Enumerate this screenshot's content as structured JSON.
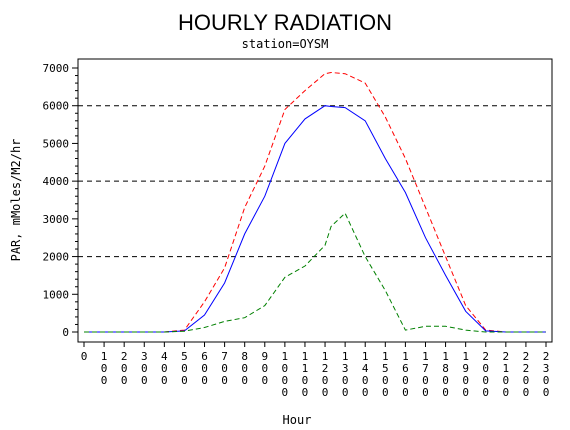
{
  "chart_data": {
    "type": "line",
    "title": "HOURLY RADIATION",
    "subtitle": "station=OYSM",
    "xlabel": "Hour",
    "ylabel": "PAR, mMoles/M2/hr",
    "xlim": [
      0,
      2300
    ],
    "ylim": [
      0,
      7000
    ],
    "x_ticks": [
      "0",
      "100",
      "200",
      "300",
      "400",
      "500",
      "600",
      "700",
      "800",
      "900",
      "1000",
      "1100",
      "1200",
      "1300",
      "1400",
      "1500",
      "1600",
      "1700",
      "1800",
      "1900",
      "2000",
      "2100",
      "2200",
      "2300"
    ],
    "y_ticks": [
      0,
      1000,
      2000,
      3000,
      4000,
      5000,
      6000,
      7000
    ],
    "reference_lines": [
      2000,
      4000,
      6000
    ],
    "x": [
      0,
      100,
      200,
      300,
      400,
      500,
      600,
      700,
      800,
      900,
      1000,
      1100,
      1200,
      1230,
      1300,
      1400,
      1500,
      1600,
      1700,
      1800,
      1900,
      2000,
      2100,
      2200,
      2300
    ],
    "series": [
      {
        "style": "dashed",
        "color": "#ff0000",
        "values": [
          0,
          0,
          0,
          0,
          0,
          50,
          800,
          1700,
          3300,
          4400,
          5900,
          6400,
          6850,
          6880,
          6850,
          6600,
          5700,
          4600,
          3300,
          2000,
          700,
          50,
          0,
          0,
          0
        ]
      },
      {
        "style": "solid",
        "color": "#0000ff",
        "values": [
          0,
          0,
          0,
          0,
          0,
          30,
          450,
          1300,
          2600,
          3600,
          5000,
          5650,
          6000,
          5980,
          5950,
          5600,
          4600,
          3700,
          2500,
          1500,
          550,
          30,
          0,
          0,
          0
        ]
      },
      {
        "style": "dashed",
        "color": "#008000",
        "values": [
          0,
          0,
          0,
          0,
          0,
          20,
          120,
          280,
          380,
          700,
          1450,
          1750,
          2300,
          2800,
          3150,
          2000,
          1100,
          50,
          150,
          150,
          50,
          0,
          0,
          0,
          0
        ]
      }
    ]
  }
}
